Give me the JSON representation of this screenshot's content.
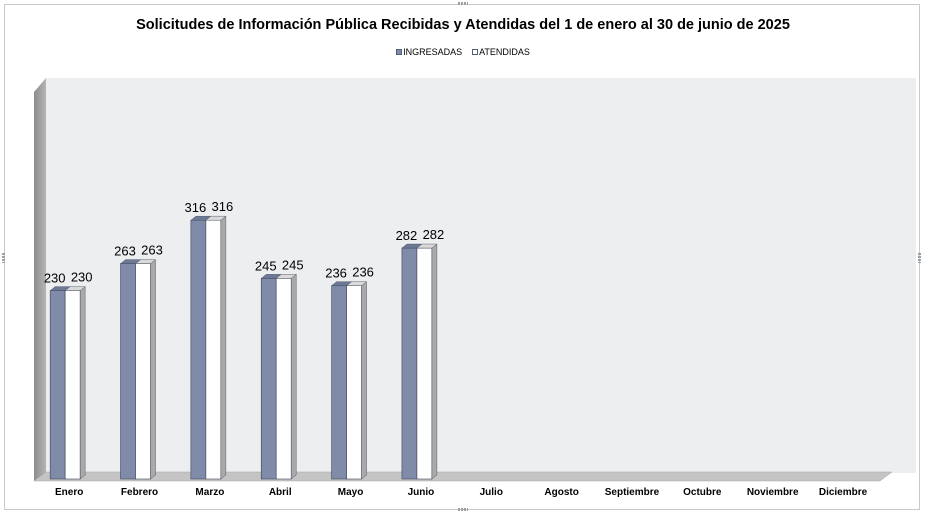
{
  "chart_data": {
    "type": "bar",
    "title": "Solicitudes de Información Pública Recibidas y Atendidas del 1 de enero al 30 de junio de 2025",
    "categories": [
      "Enero",
      "Febrero",
      "Marzo",
      "Abril",
      "Mayo",
      "Junio",
      "Julio",
      "Agosto",
      "Septiembre",
      "Octubre",
      "Noviembre",
      "Diciembre"
    ],
    "series": [
      {
        "name": "INGRESADAS",
        "values": [
          230,
          263,
          316,
          245,
          236,
          282,
          null,
          null,
          null,
          null,
          null,
          null
        ],
        "color": "#7f8ba8"
      },
      {
        "name": "ATENDIDAS",
        "values": [
          230,
          263,
          316,
          245,
          236,
          282,
          null,
          null,
          null,
          null,
          null,
          null
        ],
        "color": "#ffffff"
      }
    ],
    "ylim": [
      0,
      360
    ],
    "grid": false,
    "legend_position": "top"
  }
}
